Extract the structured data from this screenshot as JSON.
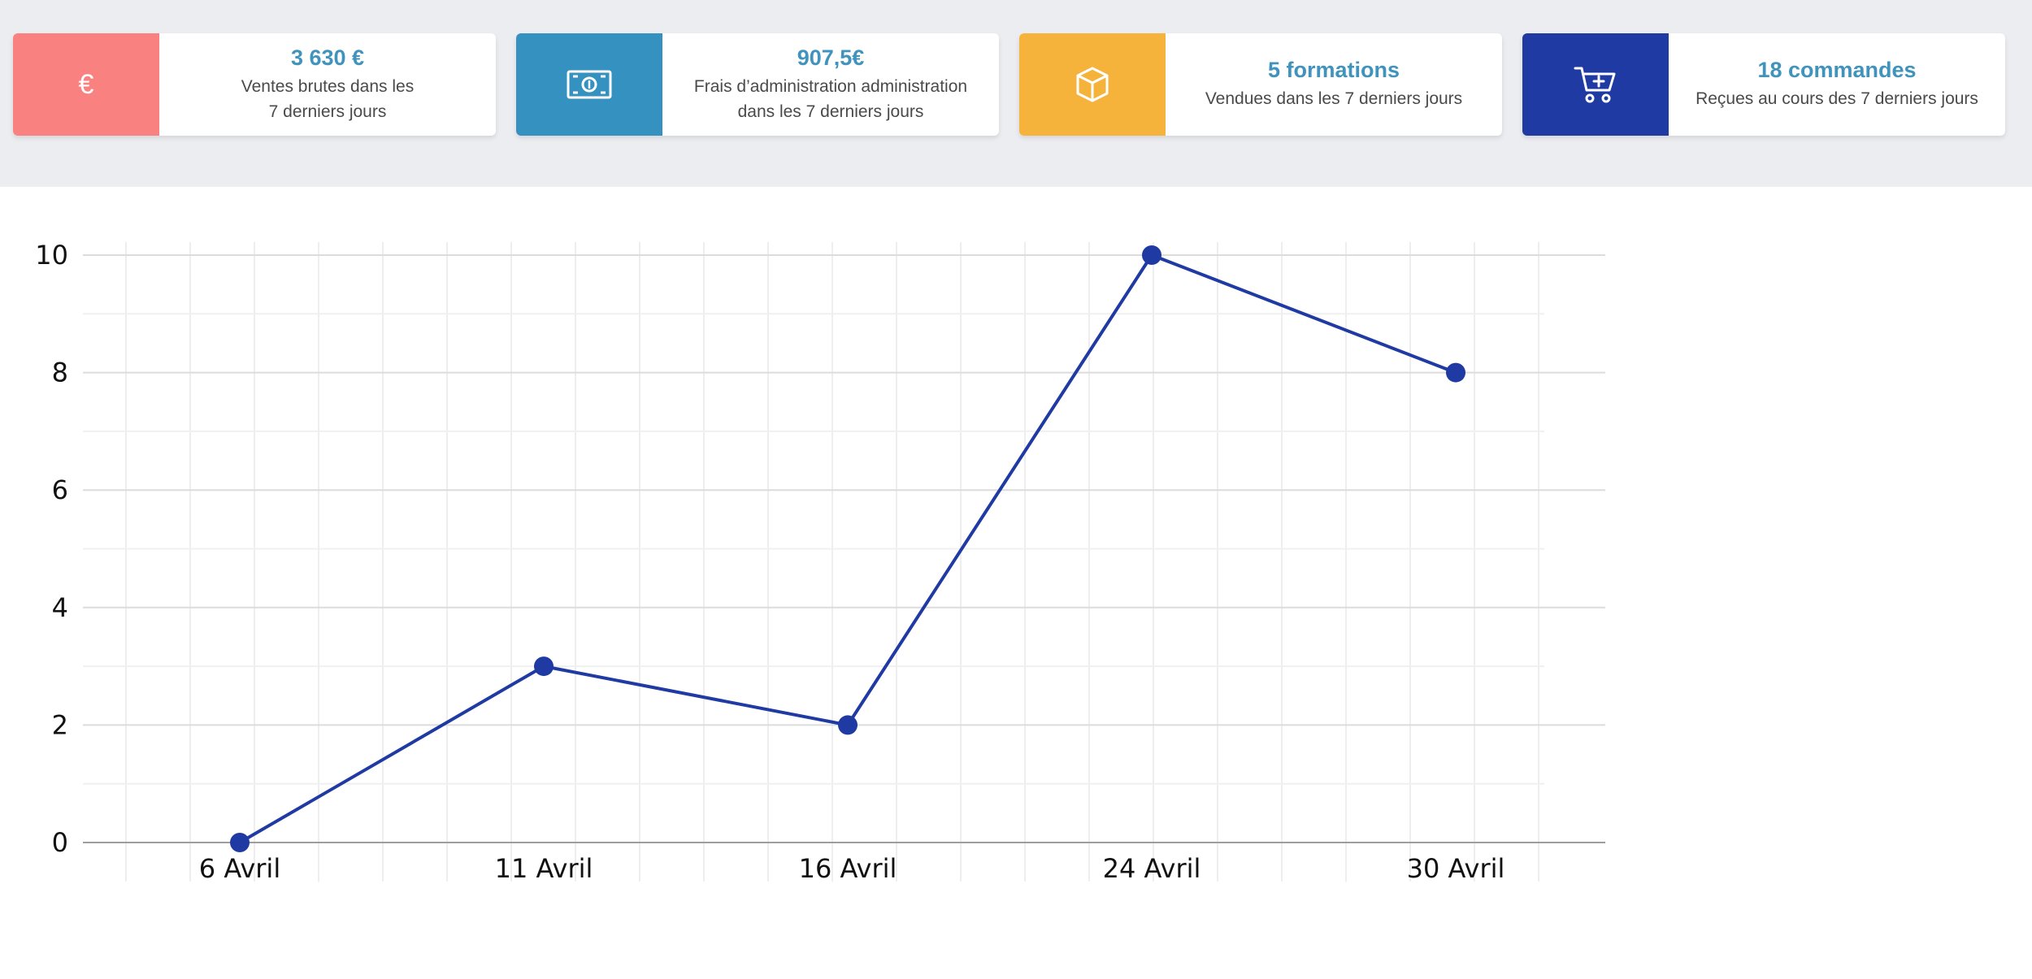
{
  "cards": [
    {
      "value": "3 630 €",
      "desc": "Ventes brutes dans les\n7 derniers jours",
      "icon": "euro-icon",
      "color": "#f98281"
    },
    {
      "value": "907,5€",
      "desc": "Frais d’administration administration\ndans les 7 derniers jours",
      "icon": "banknote-icon",
      "color": "#3591c0"
    },
    {
      "value": "5 formations",
      "desc": "Vendues dans les 7 derniers jours",
      "icon": "box-icon",
      "color": "#f5b33b"
    },
    {
      "value": "18 commandes",
      "desc": "Reçues au cours des 7 derniers jours",
      "icon": "cart-icon",
      "color": "#1f3aa3"
    }
  ],
  "chart_data": {
    "type": "line",
    "x": [
      "6 Avril",
      "11 Avril",
      "16 Avril",
      "24 Avril",
      "30 Avril"
    ],
    "series": [
      {
        "values": [
          0,
          3,
          2,
          10,
          8
        ],
        "color": "#1f3aa3"
      }
    ],
    "ylim": [
      0,
      10
    ],
    "yticks": [
      "0",
      "2",
      "4",
      "6",
      "8",
      "10"
    ],
    "grid": true,
    "legend": "none"
  }
}
